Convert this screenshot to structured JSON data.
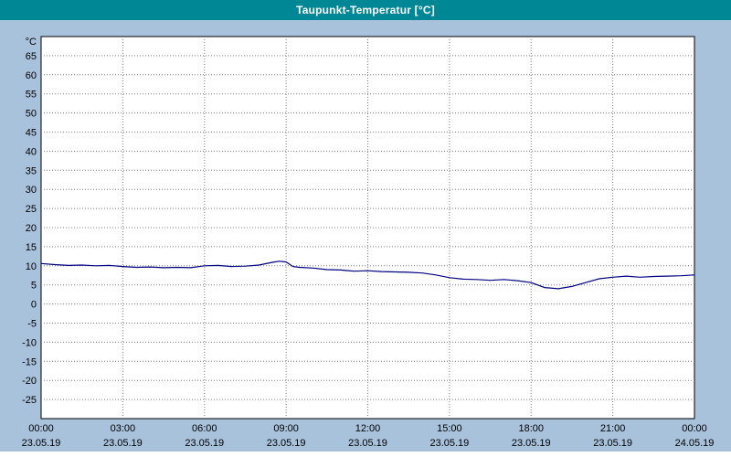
{
  "window": {
    "title": "Taupunkt-Temperatur [°C]"
  },
  "colors": {
    "title_bar": "#008795",
    "title_text": "#FFFFFF",
    "background": "#A8C2DC",
    "plot_bg": "#FFFFFF",
    "grid": "#7F7F7F",
    "border": "#000000",
    "axis_text": "#000000",
    "line": "#000080",
    "footer_strip": "#FFFFFF"
  },
  "chart_data": {
    "type": "line",
    "title": "Taupunkt-Temperatur [°C]",
    "y_unit": "°C",
    "xlim_hours": [
      0,
      24
    ],
    "ylim": [
      -30,
      70
    ],
    "y_ticks": [
      -25,
      -20,
      -15,
      -10,
      -5,
      0,
      5,
      10,
      15,
      20,
      25,
      30,
      35,
      40,
      45,
      50,
      55,
      60,
      65
    ],
    "x_ticks": [
      {
        "hour": 0,
        "time": "00:00",
        "date": "23.05.19"
      },
      {
        "hour": 3,
        "time": "03:00",
        "date": "23.05.19"
      },
      {
        "hour": 6,
        "time": "06:00",
        "date": "23.05.19"
      },
      {
        "hour": 9,
        "time": "09:00",
        "date": "23.05.19"
      },
      {
        "hour": 12,
        "time": "12:00",
        "date": "23.05.19"
      },
      {
        "hour": 15,
        "time": "15:00",
        "date": "23.05.19"
      },
      {
        "hour": 18,
        "time": "18:00",
        "date": "23.05.19"
      },
      {
        "hour": 21,
        "time": "21:00",
        "date": "23.05.19"
      },
      {
        "hour": 24,
        "time": "00:00",
        "date": "24.05.19"
      }
    ],
    "grid": "dotted",
    "legend": "none",
    "series": [
      {
        "name": "taupunkt-temperatur",
        "color": "#000080",
        "points": [
          [
            0,
            10.6
          ],
          [
            0.5,
            10.3
          ],
          [
            1,
            10.1
          ],
          [
            1.5,
            10.2
          ],
          [
            2,
            10.0
          ],
          [
            2.5,
            10.1
          ],
          [
            3,
            9.8
          ],
          [
            3.5,
            9.6
          ],
          [
            4,
            9.7
          ],
          [
            4.5,
            9.5
          ],
          [
            5,
            9.6
          ],
          [
            5.5,
            9.5
          ],
          [
            6,
            10.0
          ],
          [
            6.5,
            10.1
          ],
          [
            7,
            9.8
          ],
          [
            7.5,
            9.9
          ],
          [
            8,
            10.2
          ],
          [
            8.5,
            10.9
          ],
          [
            8.75,
            11.2
          ],
          [
            9,
            11.0
          ],
          [
            9.25,
            9.8
          ],
          [
            9.5,
            9.6
          ],
          [
            10,
            9.4
          ],
          [
            10.5,
            9.0
          ],
          [
            11,
            8.9
          ],
          [
            11.5,
            8.6
          ],
          [
            12,
            8.7
          ],
          [
            12.5,
            8.5
          ],
          [
            13,
            8.4
          ],
          [
            13.5,
            8.3
          ],
          [
            14,
            8.1
          ],
          [
            14.5,
            7.6
          ],
          [
            15,
            6.9
          ],
          [
            15.5,
            6.5
          ],
          [
            16,
            6.4
          ],
          [
            16.5,
            6.2
          ],
          [
            17,
            6.4
          ],
          [
            17.5,
            6.1
          ],
          [
            18,
            5.6
          ],
          [
            18.5,
            4.3
          ],
          [
            19,
            4.0
          ],
          [
            19.5,
            4.6
          ],
          [
            20,
            5.6
          ],
          [
            20.5,
            6.6
          ],
          [
            21,
            7.0
          ],
          [
            21.5,
            7.3
          ],
          [
            22,
            7.0
          ],
          [
            22.5,
            7.2
          ],
          [
            23,
            7.3
          ],
          [
            23.5,
            7.4
          ],
          [
            24,
            7.6
          ]
        ]
      }
    ]
  }
}
